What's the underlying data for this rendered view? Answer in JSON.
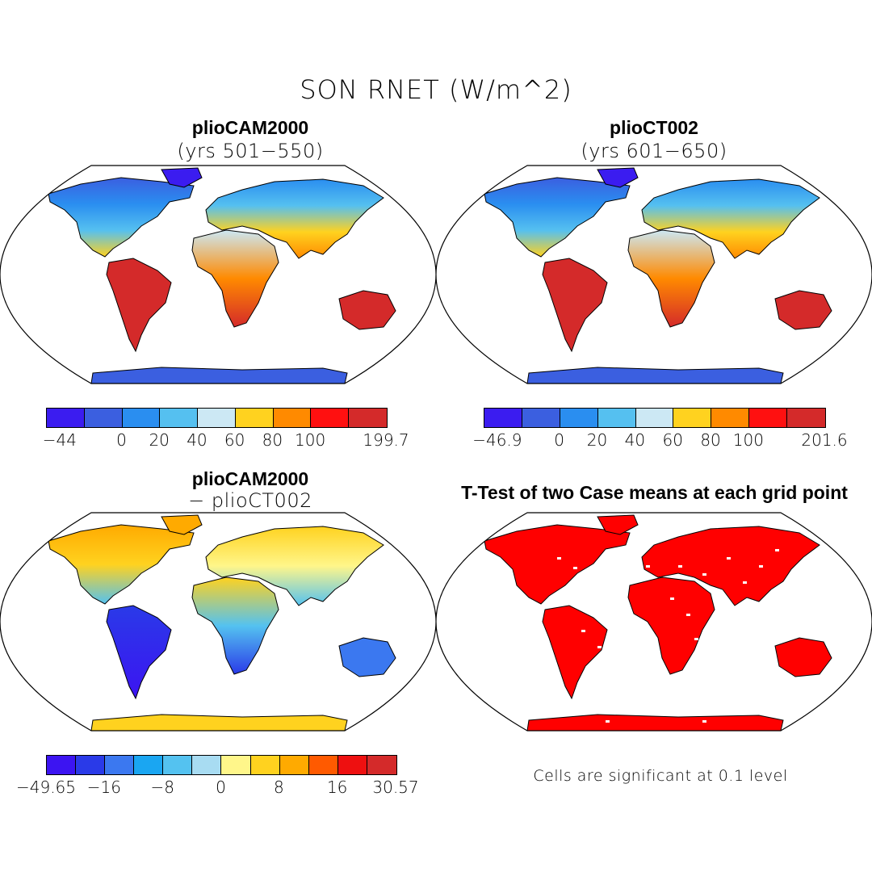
{
  "figure": {
    "title": "SON RNET (W/m^2)"
  },
  "panels": [
    {
      "id": "top-left",
      "title": "plioCAM2000",
      "subtitle": "(yrs 501−550)",
      "colorbar": {
        "colors": [
          "#3b1cf0",
          "#3b5fe0",
          "#2a8ef0",
          "#55c0f0",
          "#cce8f4",
          "#ffd21f",
          "#ff8a00",
          "#ff1010",
          "#d42a2a"
        ],
        "tick_labels": [
          "−44",
          "0",
          "20",
          "40",
          "60",
          "80",
          "100",
          "199.7"
        ]
      }
    },
    {
      "id": "top-right",
      "title": "plioCT002",
      "subtitle": "(yrs 601−650)",
      "colorbar": {
        "colors": [
          "#3b1cf0",
          "#3b5fe0",
          "#2a8ef0",
          "#55c0f0",
          "#cce8f4",
          "#ffd21f",
          "#ff8a00",
          "#ff1010",
          "#d42a2a"
        ],
        "tick_labels": [
          "−46.9",
          "0",
          "20",
          "40",
          "60",
          "80",
          "100",
          "201.6"
        ]
      }
    },
    {
      "id": "bottom-left",
      "title": "plioCAM2000",
      "subtitle": "− plioCT002",
      "colorbar": {
        "colors": [
          "#3c14f2",
          "#2a3ae8",
          "#3b78f0",
          "#1aa6f2",
          "#54c2f0",
          "#a8dcf2",
          "#fff68a",
          "#ffd21f",
          "#ffaa00",
          "#ff5a00",
          "#ee1010",
          "#d42a2a"
        ],
        "tick_labels": [
          "−49.65",
          "−16",
          "−8",
          "0",
          "8",
          "16",
          "30.57"
        ]
      }
    },
    {
      "id": "bottom-right",
      "title": "T-Test of two Case means at each grid point",
      "note": "Cells are significant at 0.1 level",
      "fill_color": "#ff0000"
    }
  ]
}
